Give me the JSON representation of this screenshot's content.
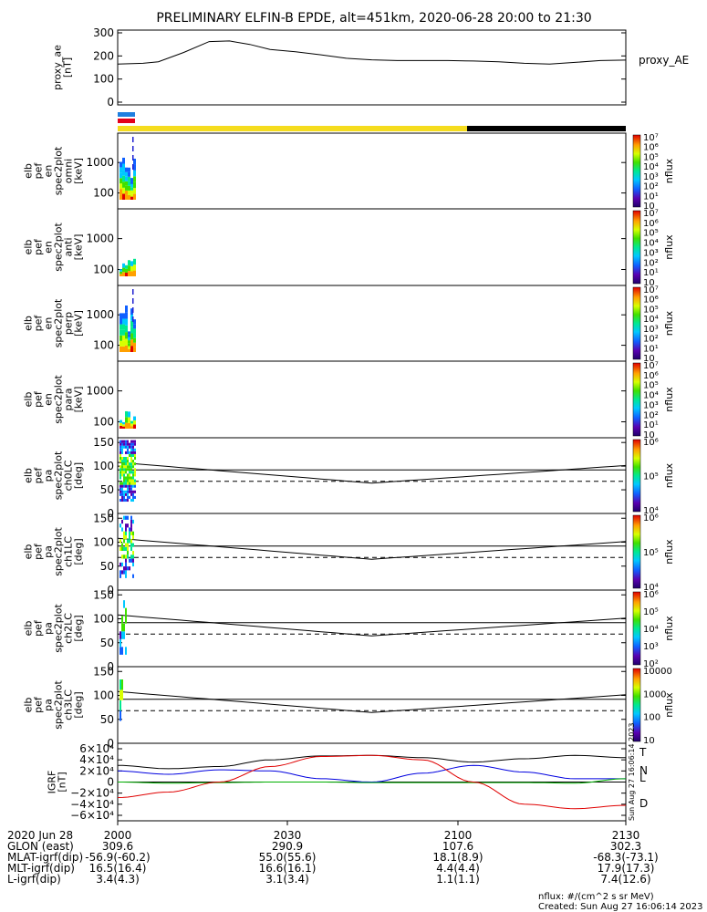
{
  "title": "PRELIMINARY ELFIN-B EPDE, alt=451km, 2020-06-28 20:00 to 21:30",
  "colors": {
    "bar_blue": "#1e7fe0",
    "bar_red": "#e3001b",
    "bar_yellow": "#f5dc1e",
    "bar_black": "#000000",
    "igrf_t": "#000000",
    "igrf_n": "#0000e0",
    "igrf_l": "#00b000",
    "igrf_d": "#e00000"
  },
  "chart_data": [
    {
      "type": "line",
      "name": "proxy_ae",
      "ylabel_lines": [
        "proxy_ae",
        "[nT]"
      ],
      "legend": "proxy_AE",
      "ylim": [
        0,
        300
      ],
      "yticks": [
        "0",
        "100",
        "200",
        "300"
      ],
      "x": [
        0,
        0.05,
        0.08,
        0.13,
        0.18,
        0.22,
        0.26,
        0.3,
        0.35,
        0.4,
        0.45,
        0.5,
        0.55,
        0.6,
        0.65,
        0.7,
        0.75,
        0.8,
        0.85,
        0.9,
        0.95,
        1.0
      ],
      "y": [
        165,
        168,
        175,
        215,
        262,
        265,
        250,
        228,
        218,
        205,
        190,
        183,
        180,
        180,
        180,
        178,
        175,
        168,
        165,
        172,
        180,
        182
      ]
    },
    {
      "type": "heatmap",
      "name": "spec-omni",
      "ylabel_lines": [
        "elb",
        "pef",
        "en",
        "spec2plot",
        "omni",
        "[keV]"
      ],
      "yticks": [
        "100",
        "1000"
      ],
      "colorbar": {
        "label": "nflux",
        "ticks": [
          "10",
          "10¹",
          "10²",
          "10³",
          "10⁴",
          "10⁵",
          "10⁶",
          "10⁷"
        ]
      }
    },
    {
      "type": "heatmap",
      "name": "spec-anti",
      "ylabel_lines": [
        "elb",
        "pef",
        "en",
        "spec2plot",
        "anti",
        "[keV]"
      ],
      "yticks": [
        "100",
        "1000"
      ],
      "colorbar": {
        "label": "nflux",
        "ticks": [
          "10",
          "10¹",
          "10²",
          "10³",
          "10⁴",
          "10⁵",
          "10⁶",
          "10⁷"
        ]
      }
    },
    {
      "type": "heatmap",
      "name": "spec-perp",
      "ylabel_lines": [
        "elb",
        "pef",
        "en",
        "spec2plot",
        "perp",
        "[keV]"
      ],
      "yticks": [
        "100",
        "1000"
      ],
      "colorbar": {
        "label": "nflux",
        "ticks": [
          "10",
          "10¹",
          "10²",
          "10³",
          "10⁴",
          "10⁵",
          "10⁶",
          "10⁷"
        ]
      }
    },
    {
      "type": "heatmap",
      "name": "spec-para",
      "ylabel_lines": [
        "elb",
        "pef",
        "en",
        "spec2plot",
        "para",
        "[keV]"
      ],
      "yticks": [
        "100",
        "1000"
      ],
      "colorbar": {
        "label": "nflux",
        "ticks": [
          "10",
          "10¹",
          "10²",
          "10³",
          "10⁴",
          "10⁵",
          "10⁶",
          "10⁷"
        ]
      }
    },
    {
      "type": "heatmap",
      "name": "pa-ch0",
      "ylabel_lines": [
        "elb",
        "pef",
        "pa",
        "spec2plot",
        "ch0LC",
        "[deg]"
      ],
      "yticks": [
        "0",
        "50",
        "100",
        "150"
      ],
      "ylim": [
        0,
        160
      ],
      "colorbar": {
        "label": "nflux",
        "ticks": [
          "10⁴",
          "10⁵",
          "10⁶"
        ]
      }
    },
    {
      "type": "heatmap",
      "name": "pa-ch1",
      "ylabel_lines": [
        "elb",
        "pef",
        "pa",
        "spec2plot",
        "ch1LC",
        "[deg]"
      ],
      "yticks": [
        "0",
        "50",
        "100",
        "150"
      ],
      "ylim": [
        0,
        160
      ],
      "colorbar": {
        "label": "nflux",
        "ticks": [
          "10⁴",
          "10⁵",
          "10⁶"
        ]
      }
    },
    {
      "type": "heatmap",
      "name": "pa-ch2",
      "ylabel_lines": [
        "elb",
        "pef",
        "pa",
        "spec2plot",
        "ch2LC",
        "[deg]"
      ],
      "yticks": [
        "0",
        "50",
        "100",
        "150"
      ],
      "ylim": [
        0,
        160
      ],
      "colorbar": {
        "label": "nflux",
        "ticks": [
          "10²",
          "10³",
          "10⁴",
          "10⁵",
          "10⁶"
        ]
      }
    },
    {
      "type": "heatmap",
      "name": "pa-ch3",
      "ylabel_lines": [
        "elb",
        "pef",
        "pa",
        "spec2plot",
        "ch3LC",
        "[deg]"
      ],
      "yticks": [
        "0",
        "50",
        "100",
        "150"
      ],
      "ylim": [
        0,
        160
      ],
      "colorbar": {
        "label": "nflux",
        "ticks": [
          "10",
          "100",
          "1000",
          "10000"
        ]
      }
    },
    {
      "type": "line",
      "name": "igrf",
      "ylabel_lines": [
        "IGRF",
        "[nT]"
      ],
      "ylim": [
        -60000,
        60000
      ],
      "yticks": [
        "−6×10⁴",
        "−4×10⁴",
        "−2×10⁴",
        "0",
        "2×10⁴",
        "4×10⁴",
        "6×10⁴"
      ],
      "x": [
        0,
        0.1,
        0.2,
        0.3,
        0.4,
        0.5,
        0.6,
        0.7,
        0.8,
        0.9,
        1.0
      ],
      "series": [
        {
          "name": "T",
          "y": [
            30000,
            24000,
            28000,
            40000,
            47000,
            48000,
            44000,
            36000,
            42000,
            48000,
            44000
          ]
        },
        {
          "name": "N",
          "y": [
            20000,
            14000,
            22000,
            20000,
            6000,
            0,
            16000,
            30000,
            18000,
            6000,
            6000
          ]
        },
        {
          "name": "L",
          "y": [
            0,
            -2000,
            -1000,
            0,
            0,
            -1000,
            -1000,
            -1000,
            -1000,
            -2000,
            6000
          ]
        },
        {
          "name": "D",
          "y": [
            -28000,
            -18000,
            0,
            28000,
            46000,
            48000,
            40000,
            0,
            -40000,
            -48000,
            -42000
          ]
        }
      ]
    }
  ],
  "side_text": "Sun Aug 27 16:06:14 2023",
  "xaxis": {
    "rows": [
      {
        "label": "2020 Jun 28",
        "values": [
          "2000",
          "2030",
          "2100",
          "2130"
        ]
      },
      {
        "label": "GLON (east)",
        "values": [
          "309.6",
          "290.9",
          "107.6",
          "302.3"
        ]
      },
      {
        "label": "MLAT-igrf(dip)",
        "values": [
          "-56.9(-60.2)",
          "55.0(55.6)",
          "18.1(8.9)",
          "-68.3(-73.1)"
        ]
      },
      {
        "label": "MLT-igrf(dip)",
        "values": [
          "16.5(16.4)",
          "16.6(16.1)",
          "4.4(4.4)",
          "17.9(17.3)"
        ]
      },
      {
        "label": "L-igrf(dip)",
        "values": [
          "3.4(4.3)",
          "3.1(3.4)",
          "1.1(1.1)",
          "7.4(12.6)"
        ]
      }
    ]
  },
  "footer": {
    "units": "nflux: #/(cm^2 s sr MeV)",
    "created": "Created: Sun Aug 27 16:06:14 2023"
  }
}
